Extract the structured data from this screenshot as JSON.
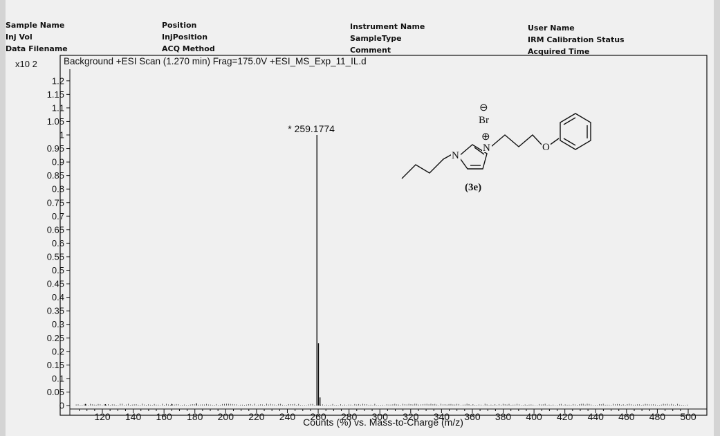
{
  "header": {
    "col1": [
      "Sample Name",
      "Inj Vol",
      "Data Filename"
    ],
    "col2": [
      "Position",
      "InjPosition",
      "ACQ Method"
    ],
    "col3": [
      "Instrument Name",
      "SampleType",
      "Comment"
    ],
    "col4": [
      "User Name",
      "IRM Calibration Status",
      "Acquired Time"
    ]
  },
  "chart_data": {
    "type": "bar",
    "title": "Background  +ESI Scan (1.270 min) Frag=175.0V +ESI_MS_Exp_11_IL.d",
    "scale_label": "x10 2",
    "xlabel": "Counts (%) vs. Mass-to-Charge (m/z)",
    "ylabel": "",
    "xlim": [
      100,
      503
    ],
    "ylim": [
      0,
      1.25
    ],
    "xticks": [
      120,
      140,
      160,
      180,
      200,
      220,
      240,
      260,
      280,
      300,
      320,
      340,
      360,
      380,
      400,
      420,
      440,
      460,
      480,
      500
    ],
    "yticks": [
      "0",
      "0.05",
      "0.1",
      "0.15",
      "0.2",
      "0.25",
      "0.3",
      "0.35",
      "0.4",
      "0.45",
      "0.5",
      "0.55",
      "0.6",
      "0.65",
      "0.7",
      "0.75",
      "0.8",
      "0.85",
      "0.9",
      "0.95",
      "1",
      "1.05",
      "1.1",
      "1.15",
      "1.2"
    ],
    "peaks": [
      {
        "mz": 259.1774,
        "intensity": 1.0,
        "label": "* 259.1774"
      },
      {
        "mz": 260.18,
        "intensity": 0.23,
        "label": ""
      },
      {
        "mz": 261.18,
        "intensity": 0.03,
        "label": ""
      },
      {
        "mz": 181.0,
        "intensity": 0.008,
        "label": ""
      },
      {
        "mz": 165.0,
        "intensity": 0.006,
        "label": ""
      },
      {
        "mz": 122.0,
        "intensity": 0.005,
        "label": ""
      },
      {
        "mz": 109.0,
        "intensity": 0.006,
        "label": ""
      }
    ],
    "grid": false
  },
  "structure": {
    "anion": "Br",
    "anion_charge": "⊖",
    "cation_charge": "⊕",
    "nitrogen": "N",
    "oxygen": "O",
    "label": "(3e)"
  }
}
